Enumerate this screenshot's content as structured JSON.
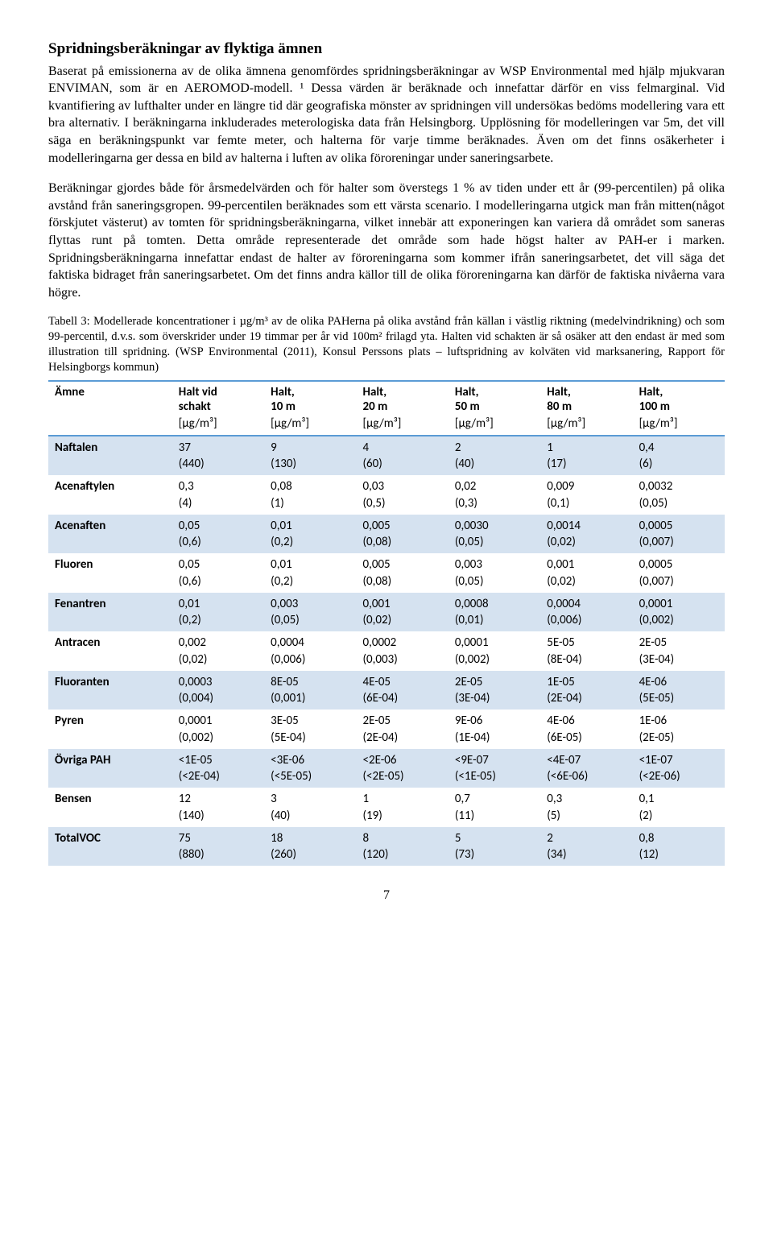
{
  "heading": "Spridningsberäkningar av flyktiga ämnen",
  "para1": "Baserat på emissionerna av de olika ämnena genomfördes spridningsberäkningar av WSP Environmental med hjälp mjukvaran ENVIMAN, som är en AEROMOD-modell. ¹ Dessa värden är beräknade och innefattar därför en viss felmarginal. Vid kvantifiering av lufthalter under en längre tid där geografiska mönster av spridningen vill undersökas bedöms modellering vara ett bra alternativ. I beräkningarna inkluderades meterologiska data från Helsingborg. Upplösning för modelleringen var 5m, det vill säga en beräkningspunkt var femte meter, och halterna för varje timme beräknades. Även om det finns osäkerheter i modelleringarna ger dessa en bild av halterna i luften av olika föroreningar under saneringsarbete.",
  "para2": "Beräkningar gjordes både för årsmedelvärden och för halter som överstegs 1 % av tiden under ett år (99-percentilen) på olika avstånd från saneringsgropen. 99-percentilen beräknades som ett värsta scenario. I modelleringarna utgick man från mitten(något förskjutet västerut) av tomten för spridningsberäkningarna, vilket innebär att exponeringen kan variera då området som saneras flyttas runt på tomten. Detta område representerade det område som hade högst halter av PAH-er i marken. Spridningsberäkningarna innefattar endast de halter av föroreningarna som kommer ifrån saneringsarbetet, det vill säga det faktiska bidraget från saneringsarbetet. Om det finns andra källor till de olika föroreningarna kan därför de faktiska nivåerna vara högre.",
  "caption": "Tabell 3: Modellerade koncentrationer i µg/m³ av de olika PAHerna på olika avstånd från källan i västlig riktning (medelvindrikning) och som 99-percentil, d.v.s. som överskrider under 19 timmar per år vid 100m² frilagd yta. Halten vid schakten är så osäker att den endast är med som illustration till spridning. (WSP Environmental (2011), Konsul Perssons plats – luftspridning av kolväten vid marksanering, Rapport för Helsingborgs kommun)",
  "table": {
    "background_odd": "#d5e2f0",
    "background_even": "#ffffff",
    "border_color": "#5b9bd5",
    "columns": [
      {
        "label": "Ämne",
        "unit": ""
      },
      {
        "label": "Halt vid schakt",
        "unit": "[µg/m³]"
      },
      {
        "label": "Halt, 10 m",
        "unit": "[µg/m³]"
      },
      {
        "label": "Halt, 20 m",
        "unit": "[µg/m³]"
      },
      {
        "label": "Halt, 50 m",
        "unit": "[µg/m³]"
      },
      {
        "label": "Halt, 80 m",
        "unit": "[µg/m³]"
      },
      {
        "label": "Halt, 100 m",
        "unit": "[µg/m³]"
      }
    ],
    "rows": [
      {
        "name": "Naftalen",
        "v": [
          "37\n(440)",
          "9\n(130)",
          "4\n(60)",
          "2\n(40)",
          "1\n(17)",
          "0,4\n(6)"
        ]
      },
      {
        "name": "Acenaftylen",
        "v": [
          "0,3\n(4)",
          "0,08\n(1)",
          "0,03\n(0,5)",
          "0,02\n(0,3)",
          "0,009\n(0,1)",
          "0,0032\n(0,05)"
        ]
      },
      {
        "name": "Acenaften",
        "v": [
          "0,05\n(0,6)",
          "0,01\n(0,2)",
          "0,005\n(0,08)",
          "0,0030\n(0,05)",
          "0,0014\n(0,02)",
          "0,0005\n(0,007)"
        ]
      },
      {
        "name": "Fluoren",
        "v": [
          "0,05\n(0,6)",
          "0,01\n(0,2)",
          "0,005\n(0,08)",
          "0,003\n(0,05)",
          "0,001\n(0,02)",
          "0,0005\n(0,007)"
        ]
      },
      {
        "name": "Fenantren",
        "v": [
          "0,01\n(0,2)",
          "0,003\n(0,05)",
          "0,001\n(0,02)",
          "0,0008\n(0,01)",
          "0,0004\n(0,006)",
          "0,0001\n(0,002)"
        ]
      },
      {
        "name": "Antracen",
        "v": [
          "0,002\n(0,02)",
          "0,0004\n(0,006)",
          "0,0002\n(0,003)",
          "0,0001\n(0,002)",
          "5E-05\n(8E-04)",
          "2E-05\n(3E-04)"
        ]
      },
      {
        "name": "Fluoranten",
        "v": [
          "0,0003\n(0,004)",
          "8E-05\n(0,001)",
          "4E-05\n(6E-04)",
          "2E-05\n(3E-04)",
          "1E-05\n(2E-04)",
          "4E-06\n(5E-05)"
        ]
      },
      {
        "name": "Pyren",
        "v": [
          "0,0001\n(0,002)",
          "3E-05\n(5E-04)",
          "2E-05\n(2E-04)",
          "9E-06\n(1E-04)",
          "4E-06\n(6E-05)",
          "1E-06\n(2E-05)"
        ]
      },
      {
        "name": "Övriga PAH",
        "v": [
          "<1E-05\n(<2E-04)",
          "<3E-06\n(<5E-05)",
          "<2E-06\n(<2E-05)",
          "<9E-07\n(<1E-05)",
          "<4E-07\n(<6E-06)",
          "<1E-07\n(<2E-06)"
        ]
      },
      {
        "name": "Bensen",
        "v": [
          "12\n(140)",
          "3\n(40)",
          "1\n(19)",
          "0,7\n(11)",
          "0,3\n(5)",
          "0,1\n(2)"
        ]
      },
      {
        "name": "TotalVOC",
        "v": [
          "75\n(880)",
          "18\n(260)",
          "8\n(120)",
          "5\n(73)",
          "2\n(34)",
          "0,8\n(12)"
        ]
      }
    ]
  },
  "page_number": "7"
}
